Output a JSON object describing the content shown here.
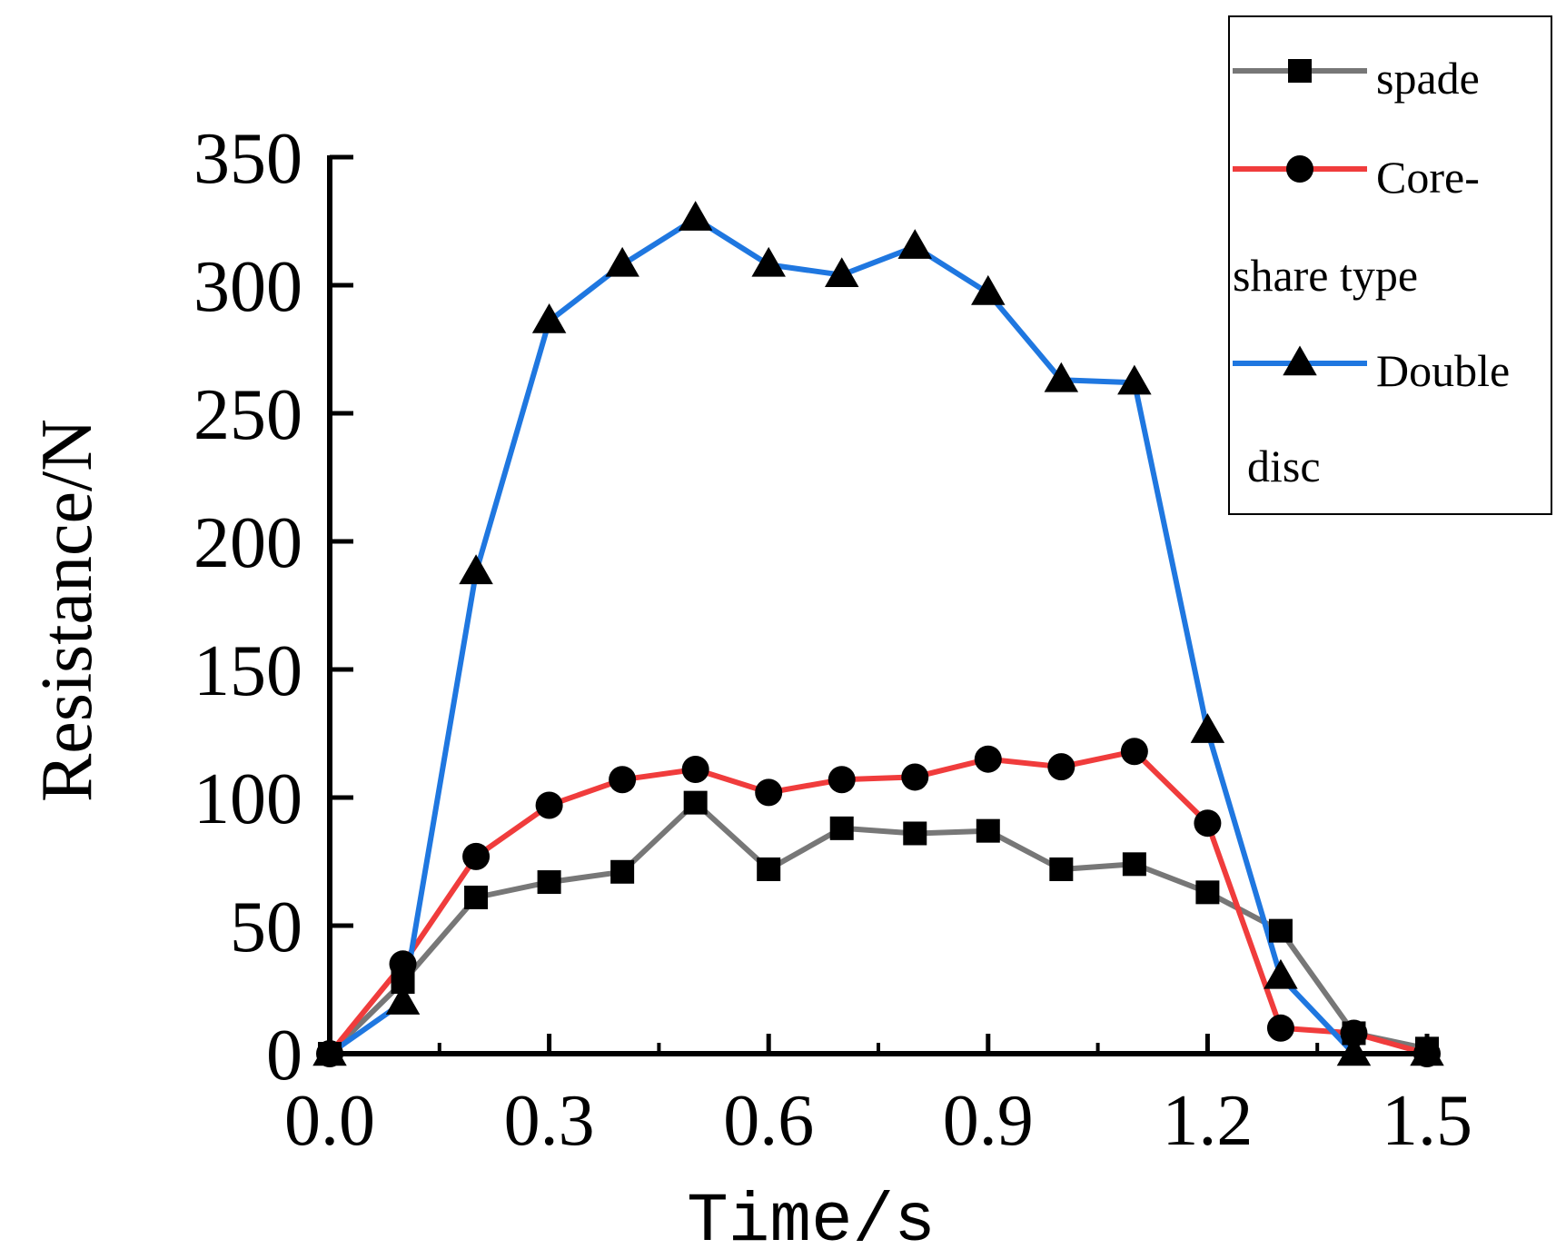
{
  "chart_data": {
    "type": "line",
    "title": "",
    "xlabel": "Time/s",
    "ylabel": "Resistance/N",
    "xlim": [
      0,
      1.5
    ],
    "ylim": [
      0,
      350
    ],
    "x_ticks": [
      "0.0",
      "0.3",
      "0.6",
      "0.9",
      "1.2",
      "1.5"
    ],
    "x_tick_values": [
      0,
      0.3,
      0.6,
      0.9,
      1.2,
      1.5
    ],
    "y_ticks": [
      "0",
      "50",
      "100",
      "150",
      "200",
      "250",
      "300",
      "350"
    ],
    "y_tick_values": [
      0,
      50,
      100,
      150,
      200,
      250,
      300,
      350
    ],
    "grid": false,
    "legend_position": "top-right",
    "x": [
      0.0,
      0.1,
      0.2,
      0.3,
      0.4,
      0.5,
      0.6,
      0.7,
      0.8,
      0.9,
      1.0,
      1.1,
      1.2,
      1.3,
      1.4,
      1.5
    ],
    "series": [
      {
        "name": "spade",
        "legend_lines": [
          "spade"
        ],
        "color": "#777777",
        "marker": "square",
        "values": [
          0,
          28,
          61,
          67,
          71,
          98,
          72,
          88,
          86,
          87,
          72,
          74,
          63,
          48,
          8,
          2
        ]
      },
      {
        "name": "Core-share type",
        "legend_lines": [
          "Core-",
          "share type"
        ],
        "color": "#f03c3c",
        "marker": "circle",
        "values": [
          0,
          35,
          77,
          97,
          107,
          111,
          102,
          107,
          108,
          115,
          112,
          118,
          90,
          10,
          8,
          0
        ]
      },
      {
        "name": "Double disc",
        "legend_lines": [
          "Double",
          "disc"
        ],
        "color": "#1f77e0",
        "marker": "triangle",
        "values": [
          0,
          20,
          188,
          286,
          308,
          326,
          308,
          304,
          315,
          297,
          263,
          262,
          126,
          30,
          0,
          0
        ]
      }
    ]
  }
}
